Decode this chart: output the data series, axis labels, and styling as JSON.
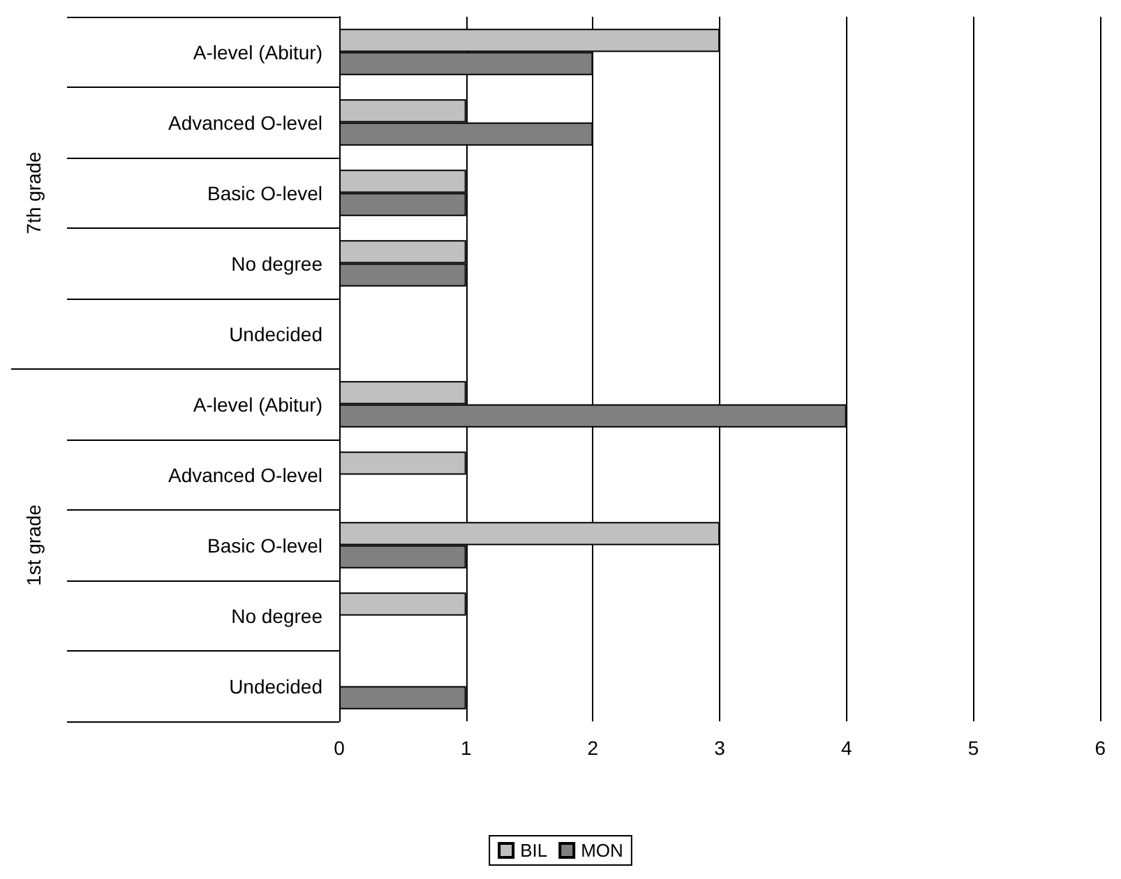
{
  "chart_data": {
    "type": "bar",
    "orientation": "horizontal",
    "categories": [
      "A-level (Abitur)",
      "Advanced O-level",
      "Basic O-level",
      "No degree",
      "Undecided",
      "A-level (Abitur)",
      "Advanced O-level",
      "Basic O-level",
      "No degree",
      "Undecided"
    ],
    "series": [
      {
        "name": "BIL",
        "color": "#c0c0c0",
        "values": [
          3,
          1,
          1,
          1,
          null,
          1,
          1,
          3,
          1,
          null
        ]
      },
      {
        "name": "MON",
        "color": "#808080",
        "values": [
          2,
          2,
          1,
          1,
          null,
          4,
          null,
          1,
          null,
          1
        ]
      }
    ],
    "annotations": [
      "7th grade",
      "1st grade"
    ],
    "xlim": [
      0,
      6
    ],
    "xticks": [
      0,
      1,
      2,
      3,
      4,
      5,
      6
    ],
    "grid": "x",
    "legend": "bottom"
  }
}
